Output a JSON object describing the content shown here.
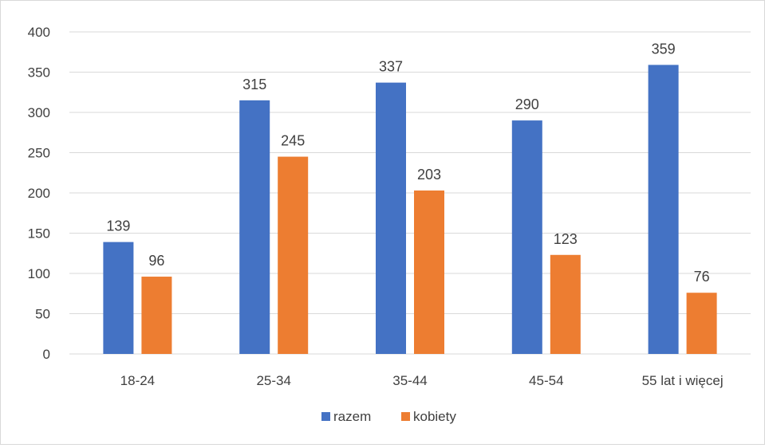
{
  "chart_data": {
    "type": "bar",
    "categories": [
      "18-24",
      "25-34",
      "35-44",
      "45-54",
      "55 lat i więcej"
    ],
    "series": [
      {
        "name": "razem",
        "values": [
          139,
          315,
          337,
          290,
          359
        ],
        "color": "#4472C4"
      },
      {
        "name": "kobiety",
        "values": [
          96,
          245,
          203,
          123,
          76
        ],
        "color": "#ED7D31"
      }
    ],
    "title": "",
    "xlabel": "",
    "ylabel": "",
    "ylim": [
      0,
      400
    ],
    "yticks": [
      0,
      50,
      100,
      150,
      200,
      250,
      300,
      350,
      400
    ],
    "grid": true,
    "data_labels": true,
    "legend": "bottom-center",
    "gridline_color": "#d9d9d9",
    "text_color": "#404040"
  }
}
